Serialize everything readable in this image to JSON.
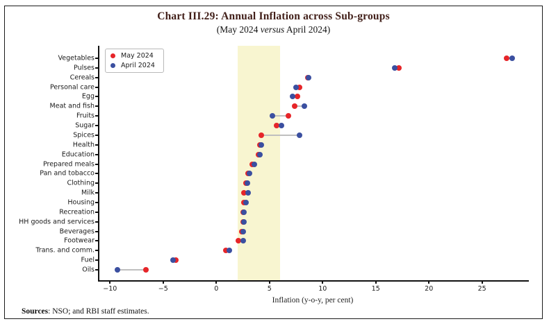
{
  "title": "Chart III.29: Annual Inflation across Sub-groups",
  "subtitle": {
    "prefix": "(May 2024 ",
    "versus": "versus",
    "suffix": " April 2024)"
  },
  "footer": {
    "bold": "Sources",
    "rest": ": NSO; and RBI staff estimates."
  },
  "chart_data": {
    "type": "scatter",
    "variant": "horizontal dot plot comparing two months",
    "xlabel": "Inflation (y-o-y, per cent)",
    "xlim": [
      -11,
      29.4
    ],
    "x_ticks": [
      -10,
      -5,
      0,
      5,
      10,
      15,
      20,
      25
    ],
    "grid": false,
    "tolerance_band": {
      "from": 2,
      "to": 6,
      "color": "#f8f5d0"
    },
    "legend_position": "top-left inside plot",
    "legend": [
      {
        "label": "May 2024",
        "color": "#e62529"
      },
      {
        "label": "April 2024",
        "color": "#3b4fa0"
      }
    ],
    "categories": [
      "Vegetables",
      "Pulses",
      "Cereals",
      "Personal care",
      "Egg",
      "Meat and fish",
      "Fruits",
      "Sugar",
      "Spices",
      "Health",
      "Education",
      "Prepared meals",
      "Pan and tobacco",
      "Clothing",
      "Milk",
      "Housing",
      "Recreation",
      "HH goods and services",
      "Beverages",
      "Footwear",
      "Trans. and comm.",
      "Fuel",
      "Oils"
    ],
    "series": [
      {
        "name": "May 2024",
        "color": "#e62529",
        "values": [
          27.3,
          17.2,
          8.6,
          7.8,
          7.6,
          7.4,
          6.8,
          5.7,
          4.2,
          4.1,
          4.0,
          3.4,
          3.0,
          2.8,
          2.6,
          2.6,
          2.5,
          2.5,
          2.4,
          2.1,
          0.9,
          -3.8,
          -6.6
        ]
      },
      {
        "name": "April 2024",
        "color": "#3b4fa0",
        "values": [
          27.8,
          16.8,
          8.7,
          7.5,
          7.2,
          8.3,
          5.3,
          6.1,
          7.8,
          4.2,
          4.1,
          3.6,
          3.1,
          2.9,
          3.0,
          2.8,
          2.6,
          2.6,
          2.5,
          2.5,
          1.2,
          -4.1,
          -9.3
        ]
      }
    ],
    "connector_color": "#bfbfbf"
  }
}
